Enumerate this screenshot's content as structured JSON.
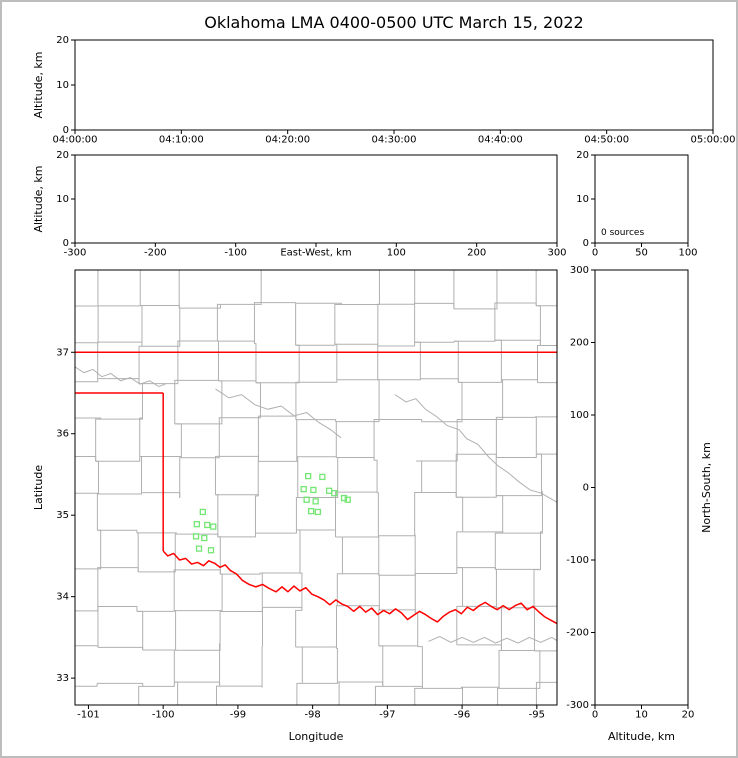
{
  "title": "Oklahoma LMA 0400-0500 UTC March 15, 2022",
  "colors": {
    "background": "#ffffff",
    "frame_border": "#bdbdbd",
    "axis": "#000000",
    "county_line": "#b0b0b0",
    "state_border": "#ff0000",
    "station_marker": "#74e674"
  },
  "chart_data": [
    {
      "id": "time_height",
      "type": "scatter",
      "description": "Altitude vs time panel (no lightning sources plotted)",
      "xtick_labels": [
        "04:00:00",
        "04:10:00",
        "04:20:00",
        "04:30:00",
        "04:40:00",
        "04:50:00",
        "05:00:00"
      ],
      "ylabel": "Altitude, km",
      "ylim": [
        0,
        20
      ],
      "yticks": [
        0,
        10,
        20
      ],
      "points": []
    },
    {
      "id": "ew_height",
      "type": "scatter",
      "description": "Altitude vs east-west distance panel (no lightning sources plotted)",
      "xlabel": "East-West, km",
      "xlabel_position": "inline-center",
      "xlim": [
        -300,
        300
      ],
      "xticks": [
        -300,
        -200,
        -100,
        0,
        100,
        200,
        300
      ],
      "xtick_skip_labels": [
        0
      ],
      "ylabel": "Altitude, km",
      "ylim": [
        0,
        20
      ],
      "yticks": [
        0,
        10,
        20
      ],
      "points": []
    },
    {
      "id": "alt_histogram",
      "type": "line",
      "description": "Altitude histogram of source counts",
      "annotation": "0 sources",
      "xlim": [
        0,
        100
      ],
      "xticks": [
        0,
        50,
        100
      ],
      "ylim": [
        0,
        20
      ],
      "yticks": [
        0,
        10,
        20
      ],
      "points": []
    },
    {
      "id": "plan_view_map",
      "type": "scatter",
      "description": "Plan view map of Oklahoma with county lines (gray), state border (red) and LMA station markers (green squares)",
      "xlabel": "Longitude",
      "xlim": [
        -101.18,
        -94.73
      ],
      "xticks": [
        -101,
        -100,
        -99,
        -98,
        -97,
        -96,
        -95
      ],
      "ylabel": "Latitude",
      "ylim": [
        32.67,
        38.01
      ],
      "yticks": [
        33,
        34,
        35,
        36,
        37
      ],
      "county_grid": true,
      "stations": [
        [
          -98.06,
          35.48
        ],
        [
          -97.87,
          35.47
        ],
        [
          -98.12,
          35.32
        ],
        [
          -97.99,
          35.31
        ],
        [
          -97.78,
          35.3
        ],
        [
          -97.71,
          35.27
        ],
        [
          -98.08,
          35.19
        ],
        [
          -97.96,
          35.17
        ],
        [
          -98.02,
          35.05
        ],
        [
          -97.93,
          35.04
        ],
        [
          -97.58,
          35.21
        ],
        [
          -97.53,
          35.19
        ],
        [
          -99.47,
          35.04
        ],
        [
          -99.55,
          34.89
        ],
        [
          -99.41,
          34.88
        ],
        [
          -99.33,
          34.86
        ],
        [
          -99.56,
          34.74
        ],
        [
          -99.45,
          34.72
        ],
        [
          -99.52,
          34.59
        ],
        [
          -99.36,
          34.57
        ]
      ],
      "state_border": {
        "north": [
          [
            -101.18,
            37
          ],
          [
            -94.73,
            37
          ]
        ],
        "panhandle_south": [
          [
            -101.18,
            36.5
          ],
          [
            -100,
            36.5
          ]
        ],
        "west": [
          [
            -100,
            36.5
          ],
          [
            -100,
            34.56
          ]
        ],
        "red_river": [
          [
            -100.0,
            34.56
          ],
          [
            -99.94,
            34.5
          ],
          [
            -99.86,
            34.53
          ],
          [
            -99.78,
            34.45
          ],
          [
            -99.7,
            34.47
          ],
          [
            -99.62,
            34.4
          ],
          [
            -99.54,
            34.42
          ],
          [
            -99.46,
            34.38
          ],
          [
            -99.39,
            34.44
          ],
          [
            -99.31,
            34.41
          ],
          [
            -99.24,
            34.36
          ],
          [
            -99.17,
            34.39
          ],
          [
            -99.1,
            34.32
          ],
          [
            -99.02,
            34.28
          ],
          [
            -98.94,
            34.2
          ],
          [
            -98.85,
            34.15
          ],
          [
            -98.76,
            34.12
          ],
          [
            -98.67,
            34.15
          ],
          [
            -98.58,
            34.1
          ],
          [
            -98.49,
            34.06
          ],
          [
            -98.41,
            34.12
          ],
          [
            -98.33,
            34.06
          ],
          [
            -98.25,
            34.13
          ],
          [
            -98.17,
            34.07
          ],
          [
            -98.09,
            34.11
          ],
          [
            -98.01,
            34.03
          ],
          [
            -97.93,
            34.0
          ],
          [
            -97.85,
            33.96
          ],
          [
            -97.77,
            33.9
          ],
          [
            -97.69,
            33.96
          ],
          [
            -97.61,
            33.91
          ],
          [
            -97.53,
            33.88
          ],
          [
            -97.45,
            33.82
          ],
          [
            -97.37,
            33.88
          ],
          [
            -97.29,
            33.81
          ],
          [
            -97.21,
            33.86
          ],
          [
            -97.13,
            33.78
          ],
          [
            -97.05,
            33.83
          ],
          [
            -96.97,
            33.79
          ],
          [
            -96.89,
            33.85
          ],
          [
            -96.81,
            33.8
          ],
          [
            -96.73,
            33.72
          ],
          [
            -96.65,
            33.77
          ],
          [
            -96.57,
            33.82
          ],
          [
            -96.49,
            33.78
          ],
          [
            -96.41,
            33.73
          ],
          [
            -96.33,
            33.69
          ],
          [
            -96.25,
            33.76
          ],
          [
            -96.17,
            33.81
          ],
          [
            -96.09,
            33.84
          ],
          [
            -96.01,
            33.79
          ],
          [
            -95.93,
            33.87
          ],
          [
            -95.85,
            33.83
          ],
          [
            -95.77,
            33.89
          ],
          [
            -95.69,
            33.93
          ],
          [
            -95.61,
            33.88
          ],
          [
            -95.53,
            33.84
          ],
          [
            -95.45,
            33.89
          ],
          [
            -95.37,
            33.84
          ],
          [
            -95.29,
            33.89
          ],
          [
            -95.21,
            33.92
          ],
          [
            -95.13,
            33.84
          ],
          [
            -95.05,
            33.88
          ],
          [
            -94.97,
            33.81
          ],
          [
            -94.89,
            33.75
          ],
          [
            -94.81,
            33.71
          ],
          [
            -94.73,
            33.67
          ]
        ]
      },
      "rivers": [
        [
          [
            -101.18,
            36.82
          ],
          [
            -101.06,
            36.75
          ],
          [
            -100.94,
            36.79
          ],
          [
            -100.82,
            36.7
          ],
          [
            -100.7,
            36.74
          ],
          [
            -100.57,
            36.65
          ],
          [
            -100.44,
            36.69
          ],
          [
            -100.31,
            36.61
          ],
          [
            -100.18,
            36.65
          ],
          [
            -100.06,
            36.58
          ],
          [
            -99.97,
            36.61
          ]
        ],
        [
          [
            -99.3,
            36.55
          ],
          [
            -99.12,
            36.44
          ],
          [
            -98.95,
            36.48
          ],
          [
            -98.78,
            36.36
          ],
          [
            -98.6,
            36.3
          ],
          [
            -98.42,
            36.34
          ],
          [
            -98.25,
            36.22
          ],
          [
            -98.08,
            36.26
          ],
          [
            -97.92,
            36.14
          ],
          [
            -97.76,
            36.05
          ],
          [
            -97.62,
            35.95
          ]
        ],
        [
          [
            -96.9,
            36.48
          ],
          [
            -96.75,
            36.39
          ],
          [
            -96.62,
            36.43
          ],
          [
            -96.49,
            36.3
          ],
          [
            -96.34,
            36.21
          ],
          [
            -96.2,
            36.1
          ],
          [
            -96.04,
            36.05
          ],
          [
            -95.94,
            35.94
          ],
          [
            -95.79,
            35.87
          ],
          [
            -95.64,
            35.71
          ],
          [
            -95.51,
            35.6
          ],
          [
            -95.38,
            35.52
          ],
          [
            -95.24,
            35.41
          ],
          [
            -95.09,
            35.31
          ],
          [
            -94.94,
            35.27
          ],
          [
            -94.79,
            35.19
          ],
          [
            -94.73,
            35.16
          ]
        ],
        [
          [
            -96.45,
            33.45
          ],
          [
            -96.3,
            33.51
          ],
          [
            -96.15,
            33.44
          ],
          [
            -96.0,
            33.5
          ],
          [
            -95.85,
            33.44
          ],
          [
            -95.7,
            33.5
          ],
          [
            -95.55,
            33.43
          ],
          [
            -95.4,
            33.49
          ],
          [
            -95.25,
            33.43
          ],
          [
            -95.1,
            33.5
          ],
          [
            -94.95,
            33.44
          ],
          [
            -94.8,
            33.5
          ],
          [
            -94.73,
            33.46
          ]
        ]
      ]
    },
    {
      "id": "height_ns",
      "type": "scatter",
      "description": "North-south distance vs altitude panel (no lightning sources plotted)",
      "xlabel": "Altitude, km",
      "xlim": [
        0,
        20
      ],
      "xticks": [
        0,
        10,
        20
      ],
      "ylabel": "North-South, km",
      "ylabel_side": "right",
      "ylim": [
        -300,
        300
      ],
      "yticks": [
        -300,
        -200,
        -100,
        0,
        100,
        200,
        300
      ],
      "points": []
    }
  ]
}
